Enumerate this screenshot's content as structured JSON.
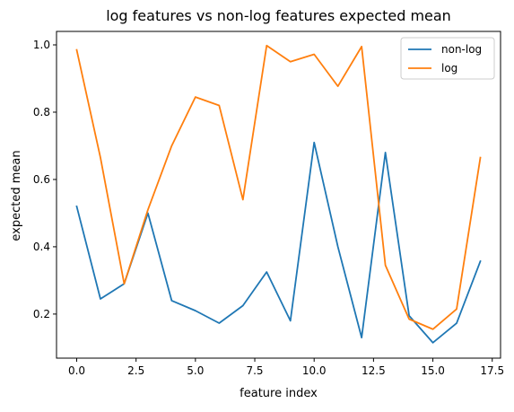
{
  "chart_data": {
    "type": "line",
    "title": "log features vs non-log features expected mean",
    "xlabel": "feature index",
    "ylabel": "expected mean",
    "x": [
      0,
      1,
      2,
      3,
      4,
      5,
      6,
      7,
      8,
      9,
      10,
      11,
      12,
      13,
      14,
      15,
      16,
      17
    ],
    "xlim": [
      -0.85,
      17.85
    ],
    "ylim": [
      0.069,
      1.04
    ],
    "xticks": [
      0.0,
      2.5,
      5.0,
      7.5,
      10.0,
      12.5,
      15.0,
      17.5
    ],
    "xtick_labels": [
      "0.0",
      "2.5",
      "5.0",
      "7.5",
      "10.0",
      "12.5",
      "15.0",
      "17.5"
    ],
    "yticks": [
      0.2,
      0.4,
      0.6,
      0.8,
      1.0
    ],
    "ytick_labels": [
      "0.2",
      "0.4",
      "0.6",
      "0.8",
      "1.0"
    ],
    "grid": false,
    "legend_position": "top-right",
    "series": [
      {
        "name": "non-log",
        "color": "#1f77b4",
        "values": [
          0.52,
          0.245,
          0.29,
          0.5,
          0.24,
          0.21,
          0.173,
          0.225,
          0.325,
          0.18,
          0.71,
          0.4,
          0.13,
          0.68,
          0.195,
          0.115,
          0.173,
          0.357
        ]
      },
      {
        "name": "log",
        "color": "#ff7f0e",
        "values": [
          0.985,
          0.665,
          0.29,
          0.51,
          0.7,
          0.845,
          0.82,
          0.54,
          0.998,
          0.95,
          0.972,
          0.877,
          0.995,
          0.345,
          0.185,
          0.155,
          0.215,
          0.665
        ]
      }
    ]
  }
}
